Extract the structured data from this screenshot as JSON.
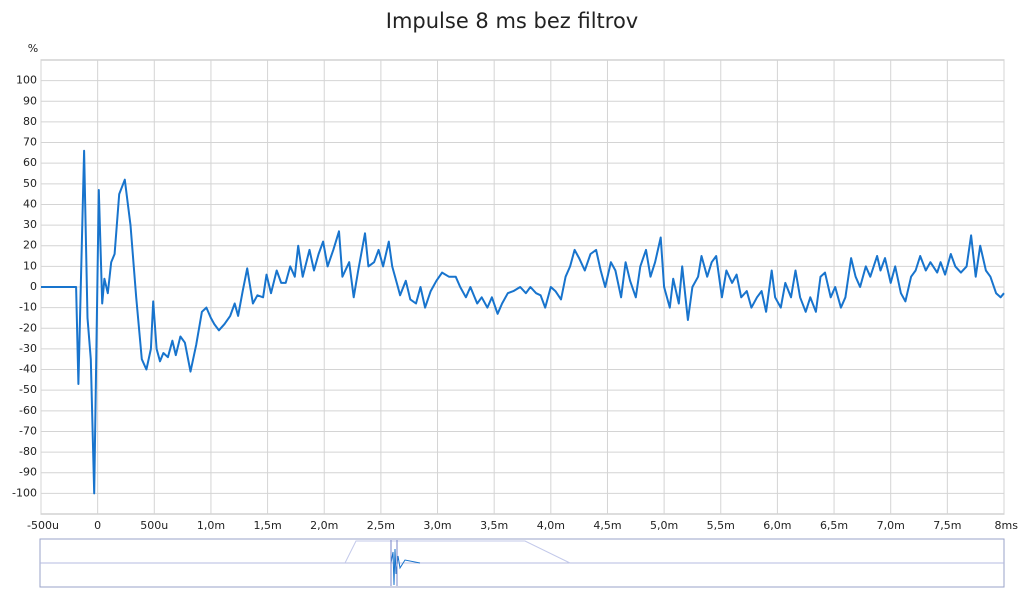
{
  "chart_data": {
    "type": "line",
    "title": "Impulse 8 ms bez filtrov",
    "y_label": "%",
    "xlim": [
      -0.5,
      8
    ],
    "ylim": [
      -110,
      110
    ],
    "xticks": [
      {
        "value": -0.5,
        "label": "-500u"
      },
      0,
      {
        "value": 0.5,
        "label": "500u"
      },
      {
        "value": 1.0,
        "label": "1,0m"
      },
      {
        "value": 1.5,
        "label": "1,5m"
      },
      {
        "value": 2.0,
        "label": "2,0m"
      },
      {
        "value": 2.5,
        "label": "2,5m"
      },
      {
        "value": 3.0,
        "label": "3,0m"
      },
      {
        "value": 3.5,
        "label": "3,5m"
      },
      {
        "value": 4.0,
        "label": "4,0m"
      },
      {
        "value": 4.5,
        "label": "4,5m"
      },
      {
        "value": 5.0,
        "label": "5,0m"
      },
      {
        "value": 5.5,
        "label": "5,5m"
      },
      {
        "value": 6.0,
        "label": "6,0m"
      },
      {
        "value": 6.5,
        "label": "6,5m"
      },
      {
        "value": 7.0,
        "label": "7,0m"
      },
      {
        "value": 7.5,
        "label": "7,5m"
      },
      {
        "value": 8,
        "label": "8ms"
      }
    ],
    "yticks": [
      -100,
      -90,
      -80,
      -70,
      -60,
      -50,
      -40,
      -30,
      -20,
      -10,
      0,
      10,
      20,
      30,
      40,
      50,
      60,
      70,
      80,
      90,
      100
    ],
    "grid": true,
    "x": [
      -0.5,
      -0.19,
      -0.17,
      -0.12,
      -0.09,
      -0.06,
      -0.03,
      0.01,
      0.04,
      0.06,
      0.09,
      0.12,
      0.15,
      0.19,
      0.24,
      0.29,
      0.34,
      0.39,
      0.43,
      0.47,
      0.49,
      0.52,
      0.55,
      0.58,
      0.62,
      0.66,
      0.69,
      0.73,
      0.77,
      0.82,
      0.87,
      0.92,
      0.96,
      1.0,
      1.03,
      1.07,
      1.12,
      1.17,
      1.21,
      1.24,
      1.28,
      1.32,
      1.37,
      1.41,
      1.46,
      1.49,
      1.53,
      1.58,
      1.62,
      1.66,
      1.7,
      1.74,
      1.77,
      1.81,
      1.87,
      1.91,
      1.95,
      1.99,
      2.03,
      2.08,
      2.13,
      2.16,
      2.22,
      2.26,
      2.3,
      2.36,
      2.39,
      2.44,
      2.48,
      2.52,
      2.57,
      2.6,
      2.65,
      2.67,
      2.72,
      2.76,
      2.81,
      2.85,
      2.89,
      2.94,
      2.99,
      3.04,
      3.1,
      3.16,
      3.2,
      3.25,
      3.29,
      3.35,
      3.39,
      3.44,
      3.48,
      3.53,
      3.57,
      3.62,
      3.67,
      3.73,
      3.78,
      3.82,
      3.87,
      3.91,
      3.95,
      4.0,
      4.04,
      4.09,
      4.13,
      4.17,
      4.21,
      4.25,
      4.3,
      4.35,
      4.4,
      4.44,
      4.48,
      4.53,
      4.57,
      4.62,
      4.66,
      4.7,
      4.75,
      4.79,
      4.84,
      4.88,
      4.92,
      4.97,
      5.0,
      5.05,
      5.08,
      5.13,
      5.16,
      5.21,
      5.25,
      5.3,
      5.33,
      5.38,
      5.42,
      5.46,
      5.51,
      5.55,
      5.6,
      5.64,
      5.68,
      5.73,
      5.77,
      5.82,
      5.86,
      5.9,
      5.95,
      5.98,
      6.03,
      6.07,
      6.12,
      6.16,
      6.2,
      6.25,
      6.29,
      6.34,
      6.38,
      6.42,
      6.47,
      6.51,
      6.56,
      6.6,
      6.65,
      6.69,
      6.73,
      6.78,
      6.82,
      6.88,
      6.91,
      6.95,
      7.0,
      7.04,
      7.09,
      7.13,
      7.18,
      7.22,
      7.26,
      7.31,
      7.35,
      7.41,
      7.44,
      7.48,
      7.53,
      7.57,
      7.62,
      7.67,
      7.71,
      7.75,
      7.79,
      7.84,
      7.88,
      7.93,
      7.97,
      8.0
    ],
    "series": [
      {
        "name": "Impulse",
        "color": "#1874cd",
        "values": [
          0,
          0,
          -47,
          66,
          -15,
          -35,
          -100,
          47,
          -8,
          4,
          -3,
          12,
          16,
          45,
          52,
          30,
          -5,
          -35,
          -40,
          -30,
          -7,
          -30,
          -36,
          -32,
          -34,
          -26,
          -33,
          -24,
          -27,
          -41,
          -28,
          -12,
          -10,
          -15,
          -18,
          -21,
          -18,
          -14,
          -8,
          -14,
          -2,
          9,
          -8,
          -4,
          -5,
          6,
          -3,
          8,
          2,
          2,
          10,
          5,
          20,
          5,
          18,
          8,
          16,
          22,
          10,
          18,
          27,
          5,
          12,
          -5,
          8,
          26,
          10,
          12,
          18,
          10,
          22,
          10,
          0,
          -4,
          3,
          -6,
          -8,
          0,
          -10,
          -2,
          3,
          7,
          5,
          5,
          0,
          -5,
          0,
          -8,
          -5,
          -10,
          -5,
          -13,
          -8,
          -3,
          -2,
          0,
          -3,
          0,
          -3,
          -4,
          -10,
          0,
          -2,
          -6,
          5,
          10,
          18,
          14,
          8,
          16,
          18,
          8,
          0,
          12,
          8,
          -5,
          12,
          3,
          -5,
          10,
          18,
          5,
          12,
          24,
          0,
          -10,
          4,
          -8,
          10,
          -16,
          0,
          5,
          15,
          5,
          12,
          15,
          -5,
          8,
          2,
          6,
          -5,
          -2,
          -10,
          -5,
          -2,
          -12,
          8,
          -5,
          -10,
          2,
          -5,
          8,
          -5,
          -12,
          -5,
          -12,
          5,
          7,
          -5,
          0,
          -10,
          -5,
          14,
          5,
          0,
          10,
          5,
          15,
          8,
          14,
          2,
          10,
          -3,
          -7,
          5,
          8,
          15,
          8,
          12,
          7,
          12,
          6,
          16,
          10,
          7,
          10,
          25,
          5,
          20,
          8,
          5,
          -3,
          -5,
          -3
        ]
      }
    ]
  }
}
